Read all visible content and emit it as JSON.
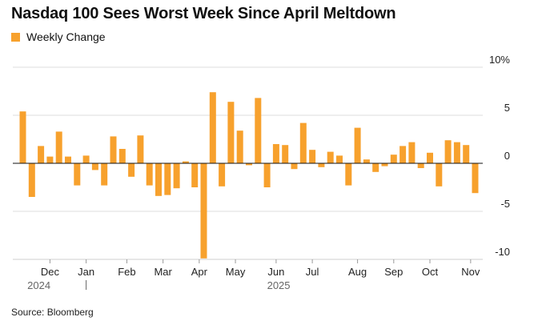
{
  "title": "Nasdaq 100 Sees Worst Week Since April Meltdown",
  "legend": {
    "label": "Weekly Change",
    "color": "#F7A12D"
  },
  "source": "Source: Bloomberg",
  "chart_data": {
    "type": "bar",
    "title": "Nasdaq 100 Sees Worst Week Since April Meltdown",
    "series": [
      {
        "name": "Weekly Change",
        "color": "#F7A12D"
      }
    ],
    "ylim": [
      -10,
      10
    ],
    "y_ticks": [
      {
        "value": 10,
        "label": "10%"
      },
      {
        "value": 5,
        "label": "5"
      },
      {
        "value": 0,
        "label": "0"
      },
      {
        "value": -5,
        "label": "-5"
      },
      {
        "value": -10,
        "label": "-10"
      }
    ],
    "x_ticks": [
      {
        "index": 3,
        "label": "Dec"
      },
      {
        "index": 7,
        "label": "Jan"
      },
      {
        "index": 11.5,
        "label": "Feb"
      },
      {
        "index": 15.5,
        "label": "Mar"
      },
      {
        "index": 19.5,
        "label": "Apr"
      },
      {
        "index": 23.5,
        "label": "May"
      },
      {
        "index": 28,
        "label": "Jun"
      },
      {
        "index": 32,
        "label": "Jul"
      },
      {
        "index": 37,
        "label": "Aug"
      },
      {
        "index": 41,
        "label": "Sep"
      },
      {
        "index": 45,
        "label": "Oct"
      },
      {
        "index": 49.5,
        "label": "Nov"
      }
    ],
    "years": [
      {
        "index": 0.5,
        "label": "2024"
      },
      {
        "index": 27,
        "label": "2025"
      }
    ],
    "year_divider_index": 7,
    "values": [
      5.4,
      -3.5,
      1.8,
      0.7,
      3.3,
      0.7,
      -2.3,
      0.8,
      -0.7,
      -2.3,
      2.8,
      1.5,
      -1.4,
      2.9,
      -2.3,
      -3.4,
      -3.3,
      -2.6,
      0.2,
      -2.5,
      -9.9,
      7.4,
      -2.4,
      6.4,
      3.4,
      -0.2,
      6.8,
      -2.5,
      2.0,
      1.9,
      -0.6,
      4.2,
      1.4,
      -0.4,
      1.2,
      0.8,
      -2.3,
      3.7,
      0.4,
      -0.9,
      -0.3,
      0.9,
      1.8,
      2.2,
      -0.5,
      1.1,
      -2.4,
      2.4,
      2.2,
      1.9,
      -3.1
    ]
  }
}
